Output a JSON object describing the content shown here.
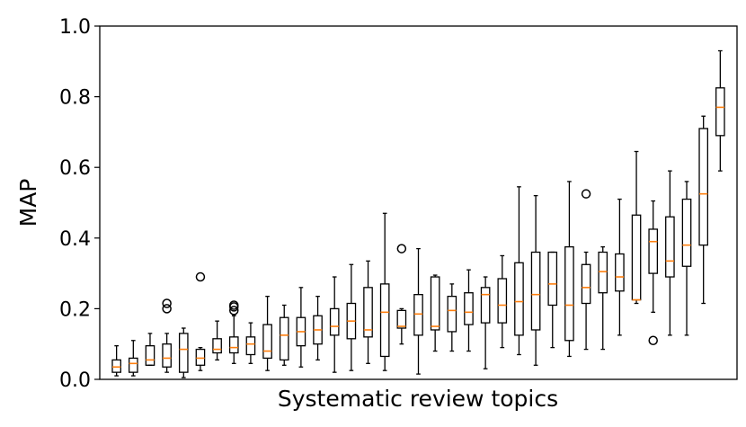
{
  "chart_data": {
    "type": "boxplot",
    "xlabel": "Systematic review topics",
    "ylabel": "MAP",
    "ylim": [
      0,
      1.0
    ],
    "yticks": [
      "0.0",
      "0.2",
      "0.4",
      "0.6",
      "0.8",
      "1.0"
    ],
    "grid": false,
    "colors": {
      "box": "#000000",
      "median": "#ff7f0e"
    },
    "boxes": [
      {
        "whislo": 0.01,
        "q1": 0.02,
        "med": 0.035,
        "q3": 0.055,
        "whishi": 0.095,
        "fliers": []
      },
      {
        "whislo": 0.01,
        "q1": 0.02,
        "med": 0.045,
        "q3": 0.06,
        "whishi": 0.11,
        "fliers": []
      },
      {
        "whislo": 0.04,
        "q1": 0.04,
        "med": 0.055,
        "q3": 0.095,
        "whishi": 0.13,
        "fliers": []
      },
      {
        "whislo": 0.02,
        "q1": 0.035,
        "med": 0.06,
        "q3": 0.1,
        "whishi": 0.13,
        "fliers": [
          0.2,
          0.215
        ]
      },
      {
        "whislo": 0.005,
        "q1": 0.02,
        "med": 0.085,
        "q3": 0.13,
        "whishi": 0.145,
        "fliers": []
      },
      {
        "whislo": 0.025,
        "q1": 0.04,
        "med": 0.06,
        "q3": 0.085,
        "whishi": 0.09,
        "fliers": [
          0.29
        ]
      },
      {
        "whislo": 0.055,
        "q1": 0.075,
        "med": 0.085,
        "q3": 0.115,
        "whishi": 0.165,
        "fliers": []
      },
      {
        "whislo": 0.045,
        "q1": 0.075,
        "med": 0.09,
        "q3": 0.12,
        "whishi": 0.18,
        "fliers": [
          0.195,
          0.205,
          0.21
        ]
      },
      {
        "whislo": 0.045,
        "q1": 0.07,
        "med": 0.1,
        "q3": 0.12,
        "whishi": 0.16,
        "fliers": []
      },
      {
        "whislo": 0.025,
        "q1": 0.06,
        "med": 0.08,
        "q3": 0.155,
        "whishi": 0.235,
        "fliers": []
      },
      {
        "whislo": 0.04,
        "q1": 0.055,
        "med": 0.125,
        "q3": 0.175,
        "whishi": 0.21,
        "fliers": []
      },
      {
        "whislo": 0.035,
        "q1": 0.095,
        "med": 0.135,
        "q3": 0.175,
        "whishi": 0.26,
        "fliers": []
      },
      {
        "whislo": 0.055,
        "q1": 0.1,
        "med": 0.14,
        "q3": 0.18,
        "whishi": 0.235,
        "fliers": []
      },
      {
        "whislo": 0.02,
        "q1": 0.125,
        "med": 0.15,
        "q3": 0.2,
        "whishi": 0.29,
        "fliers": []
      },
      {
        "whislo": 0.025,
        "q1": 0.115,
        "med": 0.165,
        "q3": 0.215,
        "whishi": 0.325,
        "fliers": []
      },
      {
        "whislo": 0.045,
        "q1": 0.12,
        "med": 0.14,
        "q3": 0.26,
        "whishi": 0.335,
        "fliers": []
      },
      {
        "whislo": 0.025,
        "q1": 0.065,
        "med": 0.19,
        "q3": 0.27,
        "whishi": 0.47,
        "fliers": []
      },
      {
        "whislo": 0.1,
        "q1": 0.145,
        "med": 0.15,
        "q3": 0.195,
        "whishi": 0.2,
        "fliers": [
          0.37
        ]
      },
      {
        "whislo": 0.015,
        "q1": 0.125,
        "med": 0.185,
        "q3": 0.24,
        "whishi": 0.37,
        "fliers": []
      },
      {
        "whislo": 0.08,
        "q1": 0.14,
        "med": 0.15,
        "q3": 0.29,
        "whishi": 0.295,
        "fliers": []
      },
      {
        "whislo": 0.08,
        "q1": 0.135,
        "med": 0.195,
        "q3": 0.235,
        "whishi": 0.27,
        "fliers": []
      },
      {
        "whislo": 0.08,
        "q1": 0.155,
        "med": 0.19,
        "q3": 0.245,
        "whishi": 0.31,
        "fliers": []
      },
      {
        "whislo": 0.03,
        "q1": 0.16,
        "med": 0.24,
        "q3": 0.26,
        "whishi": 0.29,
        "fliers": []
      },
      {
        "whislo": 0.09,
        "q1": 0.16,
        "med": 0.21,
        "q3": 0.285,
        "whishi": 0.35,
        "fliers": []
      },
      {
        "whislo": 0.07,
        "q1": 0.125,
        "med": 0.22,
        "q3": 0.33,
        "whishi": 0.545,
        "fliers": []
      },
      {
        "whislo": 0.04,
        "q1": 0.14,
        "med": 0.24,
        "q3": 0.36,
        "whishi": 0.52,
        "fliers": []
      },
      {
        "whislo": 0.09,
        "q1": 0.21,
        "med": 0.27,
        "q3": 0.36,
        "whishi": 0.36,
        "fliers": []
      },
      {
        "whislo": 0.065,
        "q1": 0.11,
        "med": 0.21,
        "q3": 0.375,
        "whishi": 0.56,
        "fliers": []
      },
      {
        "whislo": 0.085,
        "q1": 0.215,
        "med": 0.26,
        "q3": 0.325,
        "whishi": 0.36,
        "fliers": [
          0.525
        ]
      },
      {
        "whislo": 0.085,
        "q1": 0.245,
        "med": 0.305,
        "q3": 0.36,
        "whishi": 0.375,
        "fliers": []
      },
      {
        "whislo": 0.125,
        "q1": 0.25,
        "med": 0.29,
        "q3": 0.355,
        "whishi": 0.51,
        "fliers": []
      },
      {
        "whislo": 0.215,
        "q1": 0.225,
        "med": 0.225,
        "q3": 0.465,
        "whishi": 0.645,
        "fliers": []
      },
      {
        "whislo": 0.19,
        "q1": 0.3,
        "med": 0.39,
        "q3": 0.425,
        "whishi": 0.505,
        "fliers": [
          0.11
        ]
      },
      {
        "whislo": 0.125,
        "q1": 0.29,
        "med": 0.335,
        "q3": 0.46,
        "whishi": 0.59,
        "fliers": []
      },
      {
        "whislo": 0.125,
        "q1": 0.32,
        "med": 0.38,
        "q3": 0.51,
        "whishi": 0.56,
        "fliers": []
      },
      {
        "whislo": 0.215,
        "q1": 0.38,
        "med": 0.525,
        "q3": 0.71,
        "whishi": 0.745,
        "fliers": []
      },
      {
        "whislo": 0.59,
        "q1": 0.69,
        "med": 0.77,
        "q3": 0.825,
        "whishi": 0.93,
        "fliers": []
      }
    ]
  }
}
